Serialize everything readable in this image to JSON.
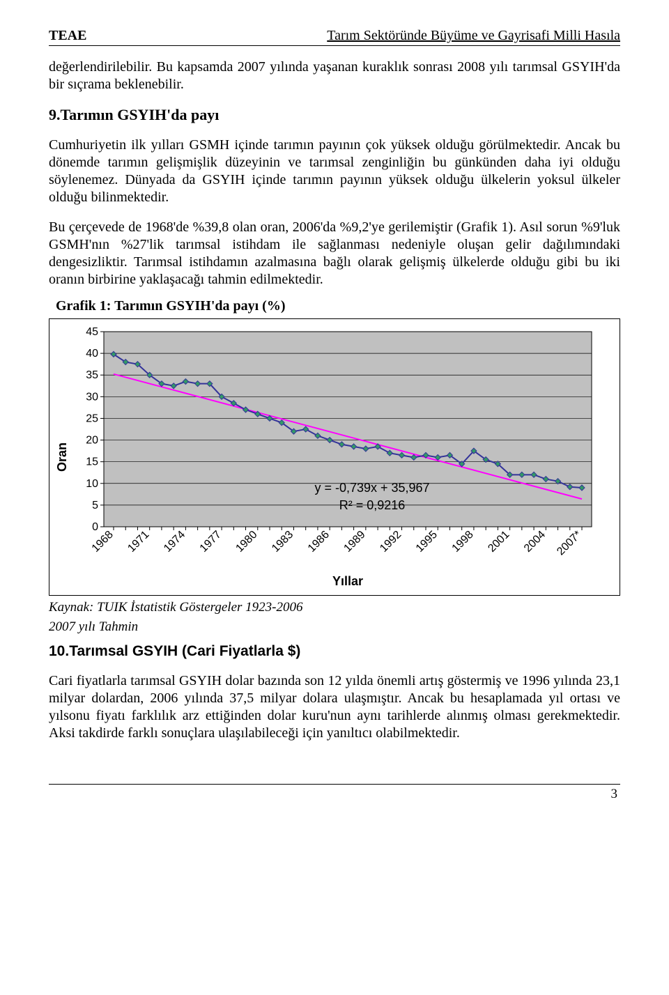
{
  "header": {
    "left": "TEAE",
    "right": "Tarım Sektöründe Büyüme ve Gayrisafi Milli Hasıla"
  },
  "para1": "değerlendirilebilir. Bu kapsamda 2007 yılında yaşanan kuraklık sonrası 2008 yılı tarımsal GSYIH'da bir sıçrama beklenebilir.",
  "section9_title": "9.Tarımın GSYIH'da payı",
  "para2": "Cumhuriyetin ilk yılları GSMH içinde tarımın payının çok yüksek olduğu görülmektedir. Ancak bu dönemde tarımın gelişmişlik düzeyinin ve tarımsal zenginliğin bu günkünden daha iyi olduğu söylenemez. Dünyada da GSYIH içinde tarımın payının yüksek olduğu ülkelerin yoksul ülkeler olduğu bilinmektedir.",
  "para3": "Bu çerçevede de 1968'de %39,8 olan oran, 2006'da %9,2'ye gerilemiştir (Grafik 1). Asıl sorun %9'luk GSMH'nın %27'lik tarımsal istihdam ile sağlanması nedeniyle oluşan gelir dağılımındaki dengesizliktir. Tarımsal istihdamın azalmasına bağlı olarak gelişmiş ülkelerde olduğu gibi bu iki oranın birbirine yaklaşacağı tahmin edilmektedir.",
  "chart": {
    "title": "Grafik 1: Tarımın GSYIH'da payı (%)",
    "type": "line_scatter_with_trend",
    "ylabel": "Oran",
    "xlabel": "Yıllar",
    "ylim": [
      0,
      45
    ],
    "ytick_step": 5,
    "yticks": [
      0,
      5,
      10,
      15,
      20,
      25,
      30,
      35,
      40,
      45
    ],
    "x_categories": [
      "1968",
      "1971",
      "1974",
      "1977",
      "1980",
      "1983",
      "1986",
      "1989",
      "1992",
      "1995",
      "1998",
      "2001",
      "2004",
      "2007*"
    ],
    "years": [
      "1968",
      "1969",
      "1970",
      "1971",
      "1972",
      "1973",
      "1974",
      "1975",
      "1976",
      "1977",
      "1978",
      "1979",
      "1980",
      "1981",
      "1982",
      "1983",
      "1984",
      "1985",
      "1986",
      "1987",
      "1988",
      "1989",
      "1990",
      "1991",
      "1992",
      "1993",
      "1994",
      "1995",
      "1996",
      "1997",
      "1998",
      "1999",
      "2000",
      "2001",
      "2002",
      "2003",
      "2004",
      "2005",
      "2006",
      "2007*"
    ],
    "values": [
      39.8,
      38.0,
      37.5,
      35.0,
      33.0,
      32.5,
      33.5,
      33.0,
      33.0,
      30.0,
      28.5,
      27.0,
      26.0,
      25.0,
      24.0,
      22.0,
      22.5,
      21.0,
      20.0,
      19.0,
      18.5,
      18.0,
      18.5,
      17.0,
      16.5,
      16.0,
      16.5,
      16.0,
      16.5,
      14.5,
      17.5,
      15.5,
      14.5,
      12.0,
      12.0,
      12.0,
      11.0,
      10.5,
      9.2,
      9.0
    ],
    "trend": {
      "slope": -0.739,
      "intercept": 35.967,
      "r2": 0.9216,
      "label_eq": "y = -0,739x + 35,967",
      "label_r2": "R² = 0,9216"
    },
    "colors": {
      "series_line": "#333399",
      "marker_fill": "#339966",
      "marker_border": "#333399",
      "trend_line": "#ff00ff",
      "grid": "#000000",
      "plot_bg": "#c0c0c0",
      "outer_bg": "#ffffff",
      "text": "#000000"
    },
    "font": {
      "family": "Arial",
      "tick_size": 16,
      "label_size": 18,
      "eq_size": 18,
      "label_weight": "bold"
    },
    "marker": {
      "shape": "diamond",
      "size": 8
    },
    "line_width": 2
  },
  "caption1": "Kaynak: TUIK İstatistik Göstergeler 1923-2006",
  "caption2": "2007 yılı Tahmin",
  "section10_title": "10.Tarımsal GSYIH (Cari Fiyatlarla $)",
  "para4": "Cari fiyatlarla tarımsal GSYIH dolar bazında son 12 yılda önemli artış göstermiş ve 1996 yılında 23,1 milyar dolardan, 2006 yılında 37,5 milyar dolara ulaşmıştır. Ancak bu hesaplamada yıl ortası ve yılsonu fiyatı farklılık arz ettiğinden dolar kuru'nun aynı tarihlerde alınmış olması gerekmektedir. Aksi takdirde farklı sonuçlara ulaşılabileceği için yanıltıcı olabilmektedir.",
  "page_number": "3"
}
